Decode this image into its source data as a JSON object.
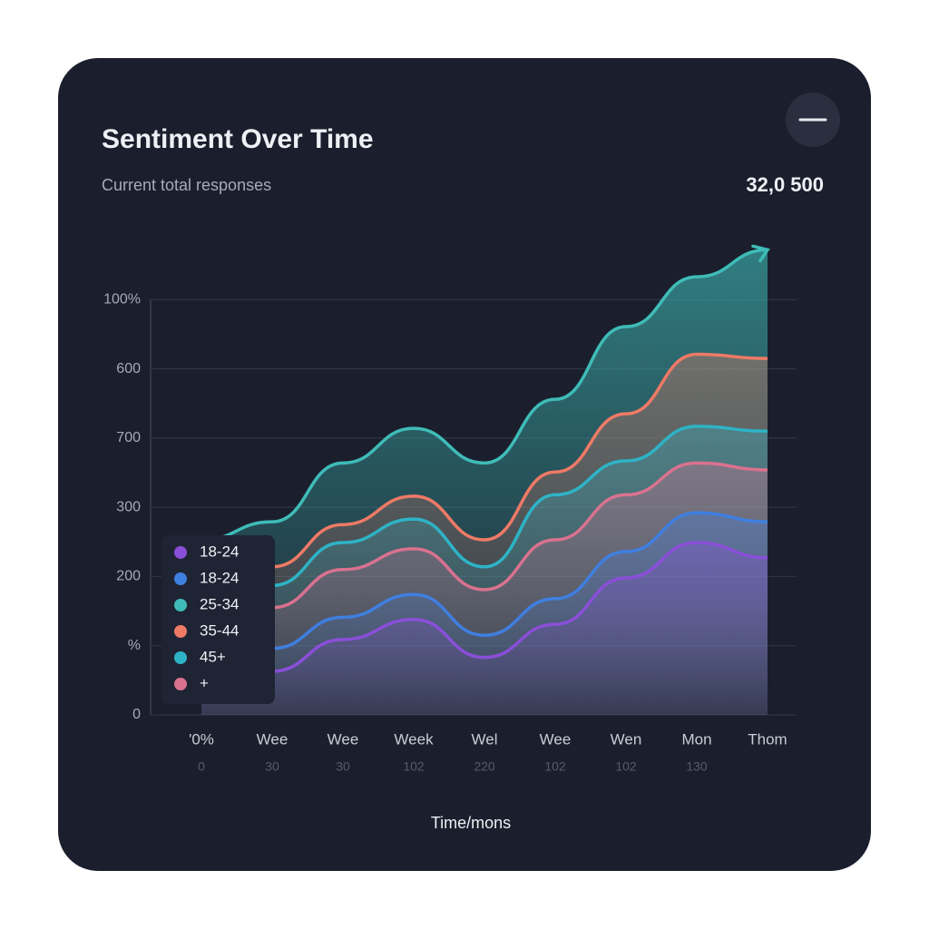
{
  "chart_data": {
    "type": "area",
    "title": "Sentiment Over Time",
    "subtitle": "Current total responses",
    "total": "32,0 500",
    "x_label": "Time/mons",
    "categories": [
      "'0%",
      "Wee",
      "Wee",
      "Week",
      "Wel",
      "Wee",
      "Wen",
      "Mon",
      "Thom"
    ],
    "x_sublabels": [
      "0",
      "30",
      "30",
      "102",
      "220",
      "102",
      "102",
      "130",
      null
    ],
    "ylim": [
      0,
      7
    ],
    "yticks": [
      0,
      {
        "value": 1,
        "label": "%"
      },
      {
        "value": 2,
        "label": "200"
      },
      {
        "value": 3,
        "label": "300"
      },
      {
        "value": 4,
        "label": "700"
      },
      {
        "value": 5,
        "label": "600"
      },
      {
        "value": 6,
        "label": "100%"
      }
    ],
    "grid": true,
    "series": [
      {
        "name": "18-24",
        "color": "#8a4fd8",
        "values": [
          0.6,
          0.63,
          1.09,
          1.38,
          0.83,
          1.31,
          1.98,
          2.49,
          2.27
        ]
      },
      {
        "name": "18-24",
        "color": "#3f7fe0",
        "values": [
          0.9,
          0.96,
          1.41,
          1.74,
          1.15,
          1.68,
          2.36,
          2.92,
          2.79
        ]
      },
      {
        "name": "25-34",
        "color": "#3fbcb8",
        "values": [
          2.53,
          2.79,
          3.64,
          4.14,
          3.64,
          4.56,
          5.61,
          6.33,
          6.72
        ]
      },
      {
        "name": "35-44",
        "color": "#ee7a66",
        "values": [
          2.0,
          2.14,
          2.75,
          3.16,
          2.53,
          3.51,
          4.35,
          5.21,
          5.15
        ]
      },
      {
        "name": "45+",
        "color": "#2eb3c6",
        "values": [
          1.75,
          1.87,
          2.49,
          2.83,
          2.14,
          3.18,
          3.67,
          4.17,
          4.1
        ]
      },
      {
        "name": "+",
        "color": "#d9728f",
        "values": [
          1.45,
          1.55,
          2.1,
          2.4,
          1.81,
          2.53,
          3.18,
          3.64,
          3.54
        ]
      }
    ]
  }
}
